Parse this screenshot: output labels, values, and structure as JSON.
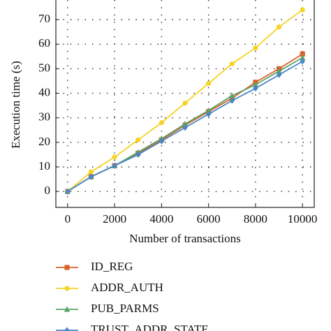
{
  "chart_data": {
    "type": "line",
    "x_label": "Number of transactions",
    "y_label": "Execution time (s)",
    "x": [
      0,
      1000,
      2000,
      3000,
      4000,
      5000,
      6000,
      7000,
      8000,
      9000,
      10000
    ],
    "series": [
      {
        "name": "ID_REG",
        "color": "#d9622b",
        "marker": "square",
        "values": [
          0,
          6,
          10.5,
          15.5,
          21,
          27,
          32.5,
          38,
          44.5,
          50,
          56
        ]
      },
      {
        "name": "ADDR_AUTH",
        "color": "#f5d327",
        "marker": "circle",
        "values": [
          0,
          8,
          14,
          21,
          28,
          36,
          44,
          52,
          58.5,
          67,
          74
        ]
      },
      {
        "name": "PUB_PARMS",
        "color": "#5aa469",
        "marker": "triangle",
        "values": [
          0,
          6,
          10.5,
          16,
          21.5,
          27.5,
          33,
          39,
          43.5,
          49,
          54.5
        ]
      },
      {
        "name": "TRUST_ADDR_STATE",
        "color": "#4a86c5",
        "marker": "diamond",
        "values": [
          0,
          6,
          10.5,
          15,
          20.5,
          26,
          31.5,
          37,
          42,
          47.5,
          53
        ]
      }
    ],
    "xlim": [
      -500,
      10500
    ],
    "xticks": [
      0,
      2000,
      4000,
      6000,
      8000,
      10000
    ],
    "ylim": [
      -6.5,
      78
    ],
    "yticks": [
      0,
      10,
      20,
      30,
      40,
      50,
      60,
      70
    ],
    "grid": true
  }
}
